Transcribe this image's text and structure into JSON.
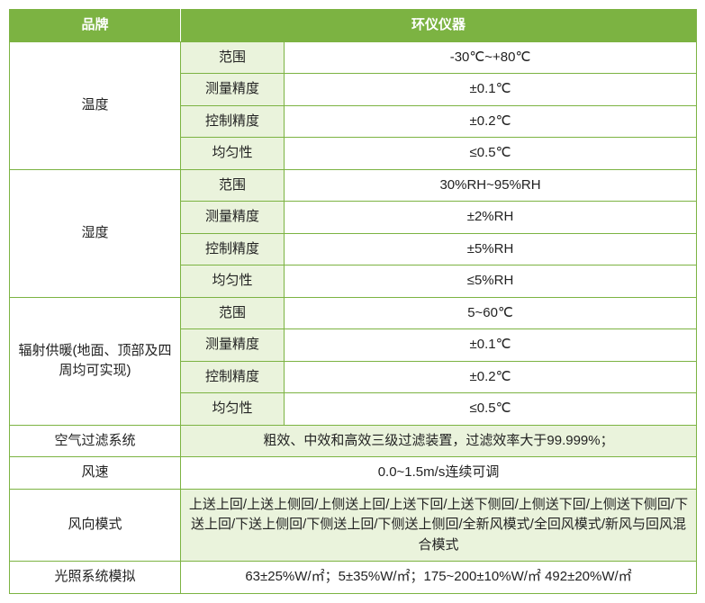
{
  "table": {
    "header": {
      "left": "品牌",
      "right": "环仪仪器"
    },
    "temperature": {
      "label": "温度",
      "range_label": "范围",
      "range_value": "-30℃~+80℃",
      "meas_label": "测量精度",
      "meas_value": "±0.1℃",
      "ctrl_label": "控制精度",
      "ctrl_value": "±0.2℃",
      "unif_label": "均匀性",
      "unif_value": "≤0.5℃"
    },
    "humidity": {
      "label": "湿度",
      "range_label": "范围",
      "range_value": "30%RH~95%RH",
      "meas_label": "测量精度",
      "meas_value": "±2%RH",
      "ctrl_label": "控制精度",
      "ctrl_value": "±5%RH",
      "unif_label": "均匀性",
      "unif_value": "≤5%RH"
    },
    "radiant": {
      "label": "辐射供暖(地面、顶部及四周均可实现)",
      "range_label": "范围",
      "range_value": "5~60℃",
      "meas_label": "测量精度",
      "meas_value": "±0.1℃",
      "ctrl_label": "控制精度",
      "ctrl_value": "±0.2℃",
      "unif_label": "均匀性",
      "unif_value": "≤0.5℃"
    },
    "air_filter": {
      "label": "空气过滤系统",
      "value": "粗效、中效和高效三级过滤装置，过滤效率大于99.999%；"
    },
    "wind_speed": {
      "label": "风速",
      "value": "0.0~1.5m/s连续可调"
    },
    "wind_mode": {
      "label": "风向模式",
      "value": "上送上回/上送上侧回/上侧送上回/上送下回/上送下侧回/上侧送下回/上侧送下侧回/下送上回/下送上侧回/下侧送上回/下侧送上侧回/全新风模式/全回风模式/新风与回风混合模式"
    },
    "light": {
      "label": "光照系统模拟",
      "value": "63±25%W/㎡；5±35%W/㎡；175~200±10%W/㎡  492±20%W/㎡"
    },
    "colors": {
      "header_bg": "#7cb342",
      "header_text": "#ffffff",
      "sub_bg": "#eaf3dc",
      "border": "#7cb342",
      "text": "#222222"
    }
  }
}
